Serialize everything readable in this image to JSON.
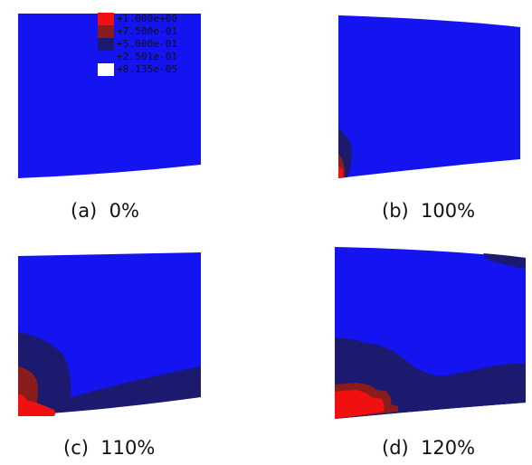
{
  "colors": {
    "level_1": "#f01010",
    "level_2": "#8b1c1c",
    "level_3": "#1c1a6e",
    "level_4": "#1414f0",
    "level_5": "#1414f0"
  },
  "legend": {
    "entries": [
      {
        "label": "+1.000e+00",
        "color": "#f01010"
      },
      {
        "label": "+7.500e-01",
        "color": "#8b1c1c"
      },
      {
        "label": "+5.000e-01",
        "color": "#1c1a6e"
      },
      {
        "label": "+2.501e-01",
        "color": "#1414f0"
      },
      {
        "label": "+8.135e-05",
        "color": "#1414f0"
      }
    ]
  },
  "panels": [
    {
      "caption": "(a)  0%"
    },
    {
      "caption": "(b)  100%"
    },
    {
      "caption": "(c)  110%"
    },
    {
      "caption": "(d)  120%"
    }
  ]
}
